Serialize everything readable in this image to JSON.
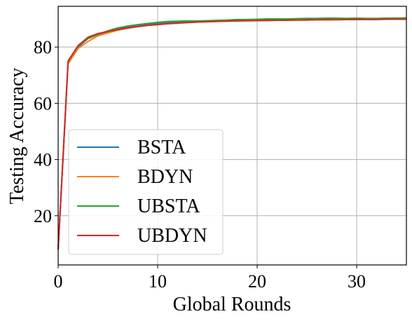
{
  "chart_data": {
    "type": "line",
    "xlabel": "Global Rounds",
    "ylabel": "Testing Accuracy",
    "xlim": [
      0,
      35
    ],
    "ylim": [
      2.5,
      94.5
    ],
    "xticks": [
      0,
      10,
      20,
      30
    ],
    "yticks": [
      20,
      40,
      60,
      80
    ],
    "grid": true,
    "legend_position": "lower-left",
    "x": [
      0,
      1,
      2,
      3,
      4,
      5,
      6,
      7,
      8,
      9,
      10,
      11,
      12,
      13,
      14,
      15,
      16,
      17,
      18,
      19,
      20,
      21,
      22,
      23,
      24,
      25,
      26,
      27,
      28,
      29,
      30,
      31,
      32,
      33,
      34,
      35
    ],
    "series": [
      {
        "name": "BSTA",
        "color": "#1f77b4",
        "values": [
          8,
          74.5,
          80,
          83,
          84.5,
          85.5,
          86.5,
          87,
          87.5,
          88,
          88.3,
          88.6,
          88.8,
          89,
          89,
          89.2,
          89.3,
          89.4,
          89.5,
          89.5,
          89.6,
          89.6,
          89.7,
          89.7,
          89.8,
          89.8,
          89.9,
          89.9,
          89.9,
          90,
          90,
          90,
          90,
          90,
          90,
          90
        ]
      },
      {
        "name": "BDYN",
        "color": "#ff7f0e",
        "values": [
          8,
          74,
          79.5,
          82,
          84,
          85,
          86,
          86.7,
          87.2,
          87.7,
          88,
          88.3,
          88.5,
          88.7,
          88.9,
          89,
          89.1,
          89.2,
          89.3,
          89.3,
          89.4,
          89.4,
          89.5,
          89.5,
          89.6,
          89.6,
          89.7,
          89.7,
          89.8,
          89.8,
          89.8,
          89.9,
          89.9,
          89.9,
          89.9,
          90
        ]
      },
      {
        "name": "UBSTA",
        "color": "#2ca02c",
        "values": [
          8,
          75,
          80.5,
          83,
          84.5,
          85.8,
          86.8,
          87.5,
          88,
          88.4,
          88.8,
          89.1,
          89.2,
          89.3,
          89.3,
          89.4,
          89.5,
          89.6,
          89.8,
          89.8,
          89.9,
          90,
          90,
          90,
          90.1,
          90.2,
          90.2,
          90.3,
          90.3,
          90.2,
          90.3,
          90.2,
          90.2,
          90.3,
          90.3,
          90.4
        ]
      },
      {
        "name": "UBDYN",
        "color": "#d62728",
        "values": [
          8,
          75,
          80.5,
          83.5,
          84.8,
          85.5,
          86.2,
          86.8,
          87.3,
          87.7,
          88,
          88.3,
          88.5,
          88.7,
          88.9,
          89,
          89.1,
          89.2,
          89.3,
          89.4,
          89.4,
          89.5,
          89.5,
          89.5,
          89.6,
          89.6,
          89.7,
          89.7,
          89.7,
          89.8,
          89.8,
          89.8,
          89.8,
          89.9,
          89.9,
          89.9
        ]
      }
    ]
  }
}
